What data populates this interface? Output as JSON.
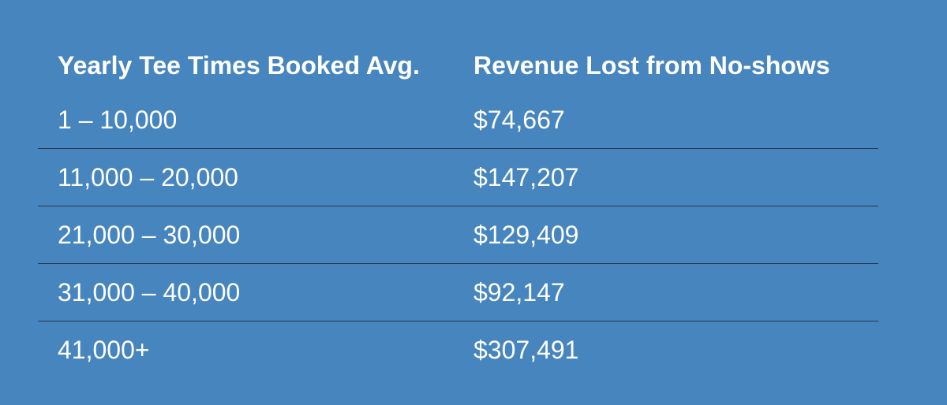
{
  "chart_data": {
    "type": "table",
    "columns": [
      "Yearly Tee Times Booked Avg.",
      "Revenue Lost from No-shows"
    ],
    "rows": [
      [
        "1 – 10,000",
        "$74,667"
      ],
      [
        "11,000 – 20,000",
        "$147,207"
      ],
      [
        "21,000 – 30,000",
        "$129,409"
      ],
      [
        "31,000 – 40,000",
        "$92,147"
      ],
      [
        "41,000+",
        "$307,491"
      ]
    ],
    "colors": {
      "background": "#4685be",
      "text": "#ffffff",
      "divider": "#26384a"
    }
  }
}
